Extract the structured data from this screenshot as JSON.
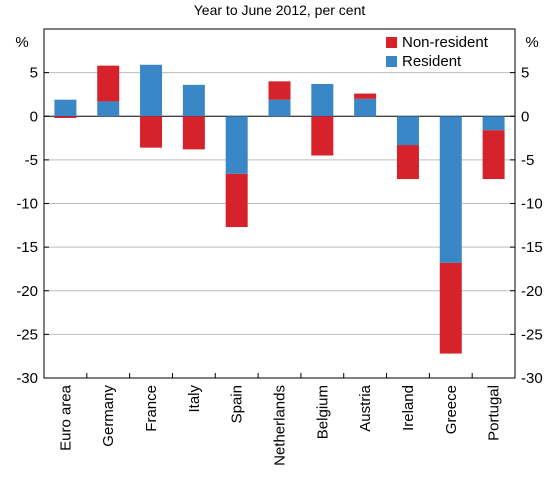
{
  "chart_data": {
    "type": "bar",
    "stacked": true,
    "subtitle": "Year to June 2012, per cent",
    "unit_left": "%",
    "unit_right": "%",
    "categories": [
      "Euro area",
      "Germany",
      "France",
      "Italy",
      "Spain",
      "Netherlands",
      "Belgium",
      "Austria",
      "Ireland",
      "Greece",
      "Portugal"
    ],
    "series": [
      {
        "name": "Resident",
        "color": "#3a87c8",
        "values": [
          1.9,
          1.7,
          5.9,
          3.6,
          -6.6,
          1.9,
          3.7,
          2.0,
          -3.3,
          -16.8,
          -1.6
        ]
      },
      {
        "name": "Non-resident",
        "color": "#d6222b",
        "values": [
          -0.2,
          4.1,
          -3.6,
          -3.8,
          -6.1,
          2.1,
          -4.5,
          0.6,
          -3.9,
          -10.4,
          -5.6
        ]
      }
    ],
    "ylim": [
      -30,
      10
    ],
    "yticks": [
      5,
      0,
      -5,
      -10,
      -15,
      -20,
      -25,
      -30
    ],
    "legend_position": "top-right",
    "grid": true
  }
}
